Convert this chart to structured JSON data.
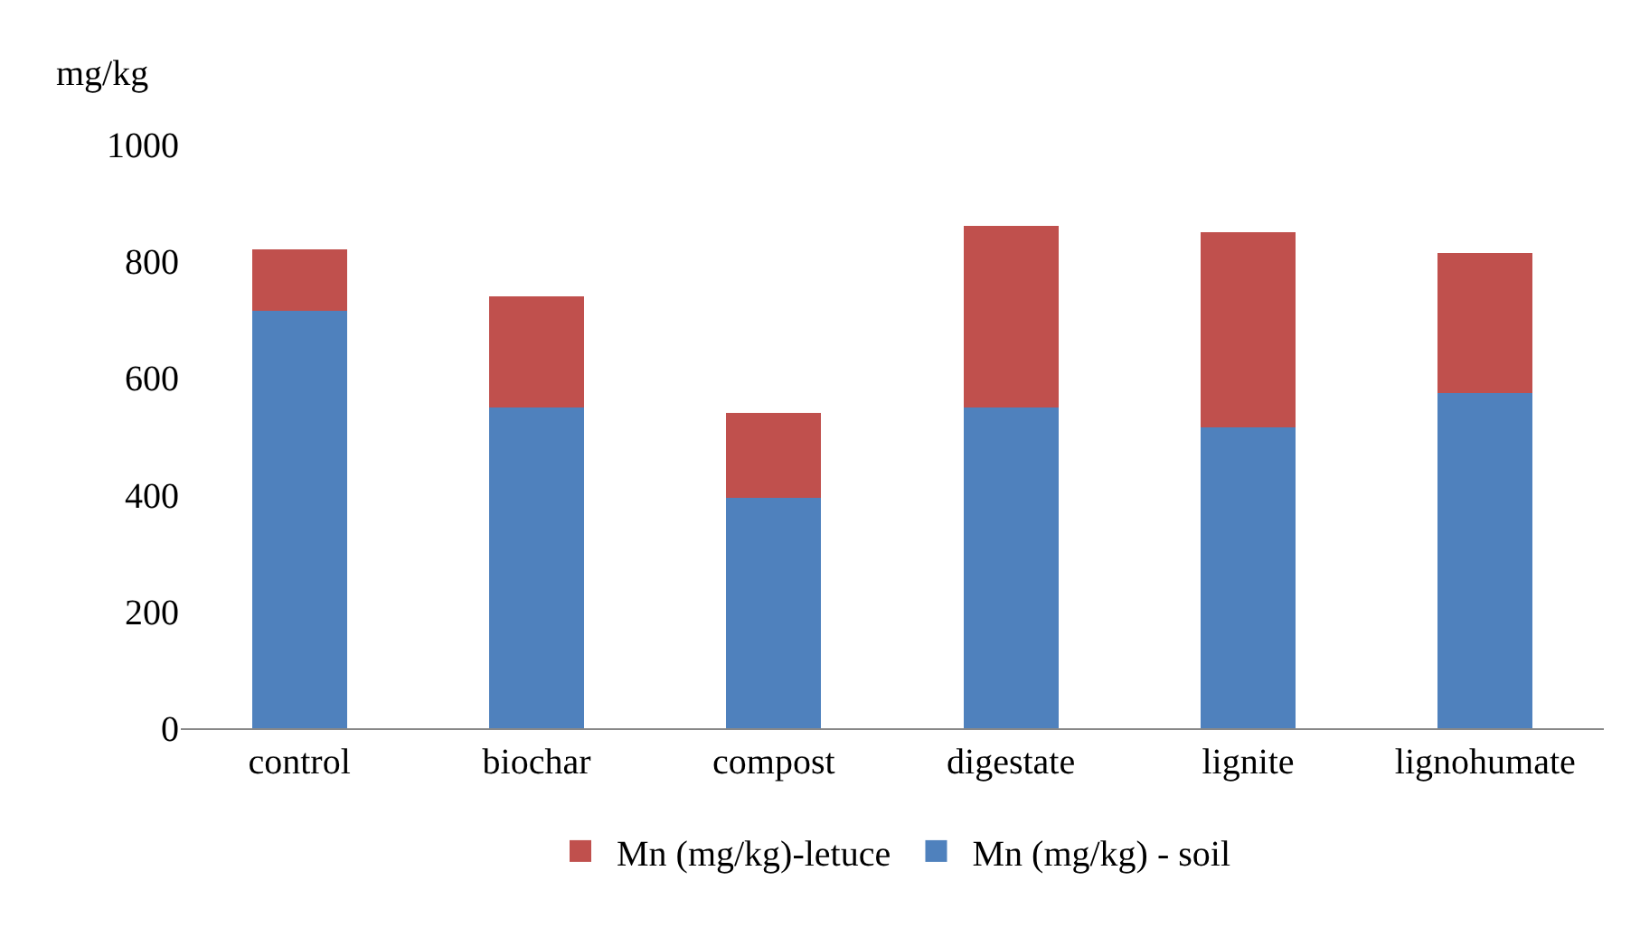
{
  "chart_data": {
    "type": "bar",
    "ylabel": "mg/kg",
    "stacked": true,
    "categories": [
      "control",
      "biochar",
      "compost",
      "digestate",
      "lignite",
      "lignohumate"
    ],
    "series": [
      {
        "name": "Mn (mg/kg) - soil",
        "color": "#4f81bd",
        "values": [
          715,
          550,
          395,
          550,
          515,
          575
        ]
      },
      {
        "name": "Mn (mg/kg)-letuce",
        "color": "#c0504d",
        "values": [
          105,
          190,
          145,
          310,
          335,
          240
        ]
      }
    ],
    "ylim": [
      0,
      1000
    ],
    "yticks": [
      0,
      200,
      400,
      600,
      800,
      1000
    ],
    "grid": false,
    "legend": "bottom"
  }
}
